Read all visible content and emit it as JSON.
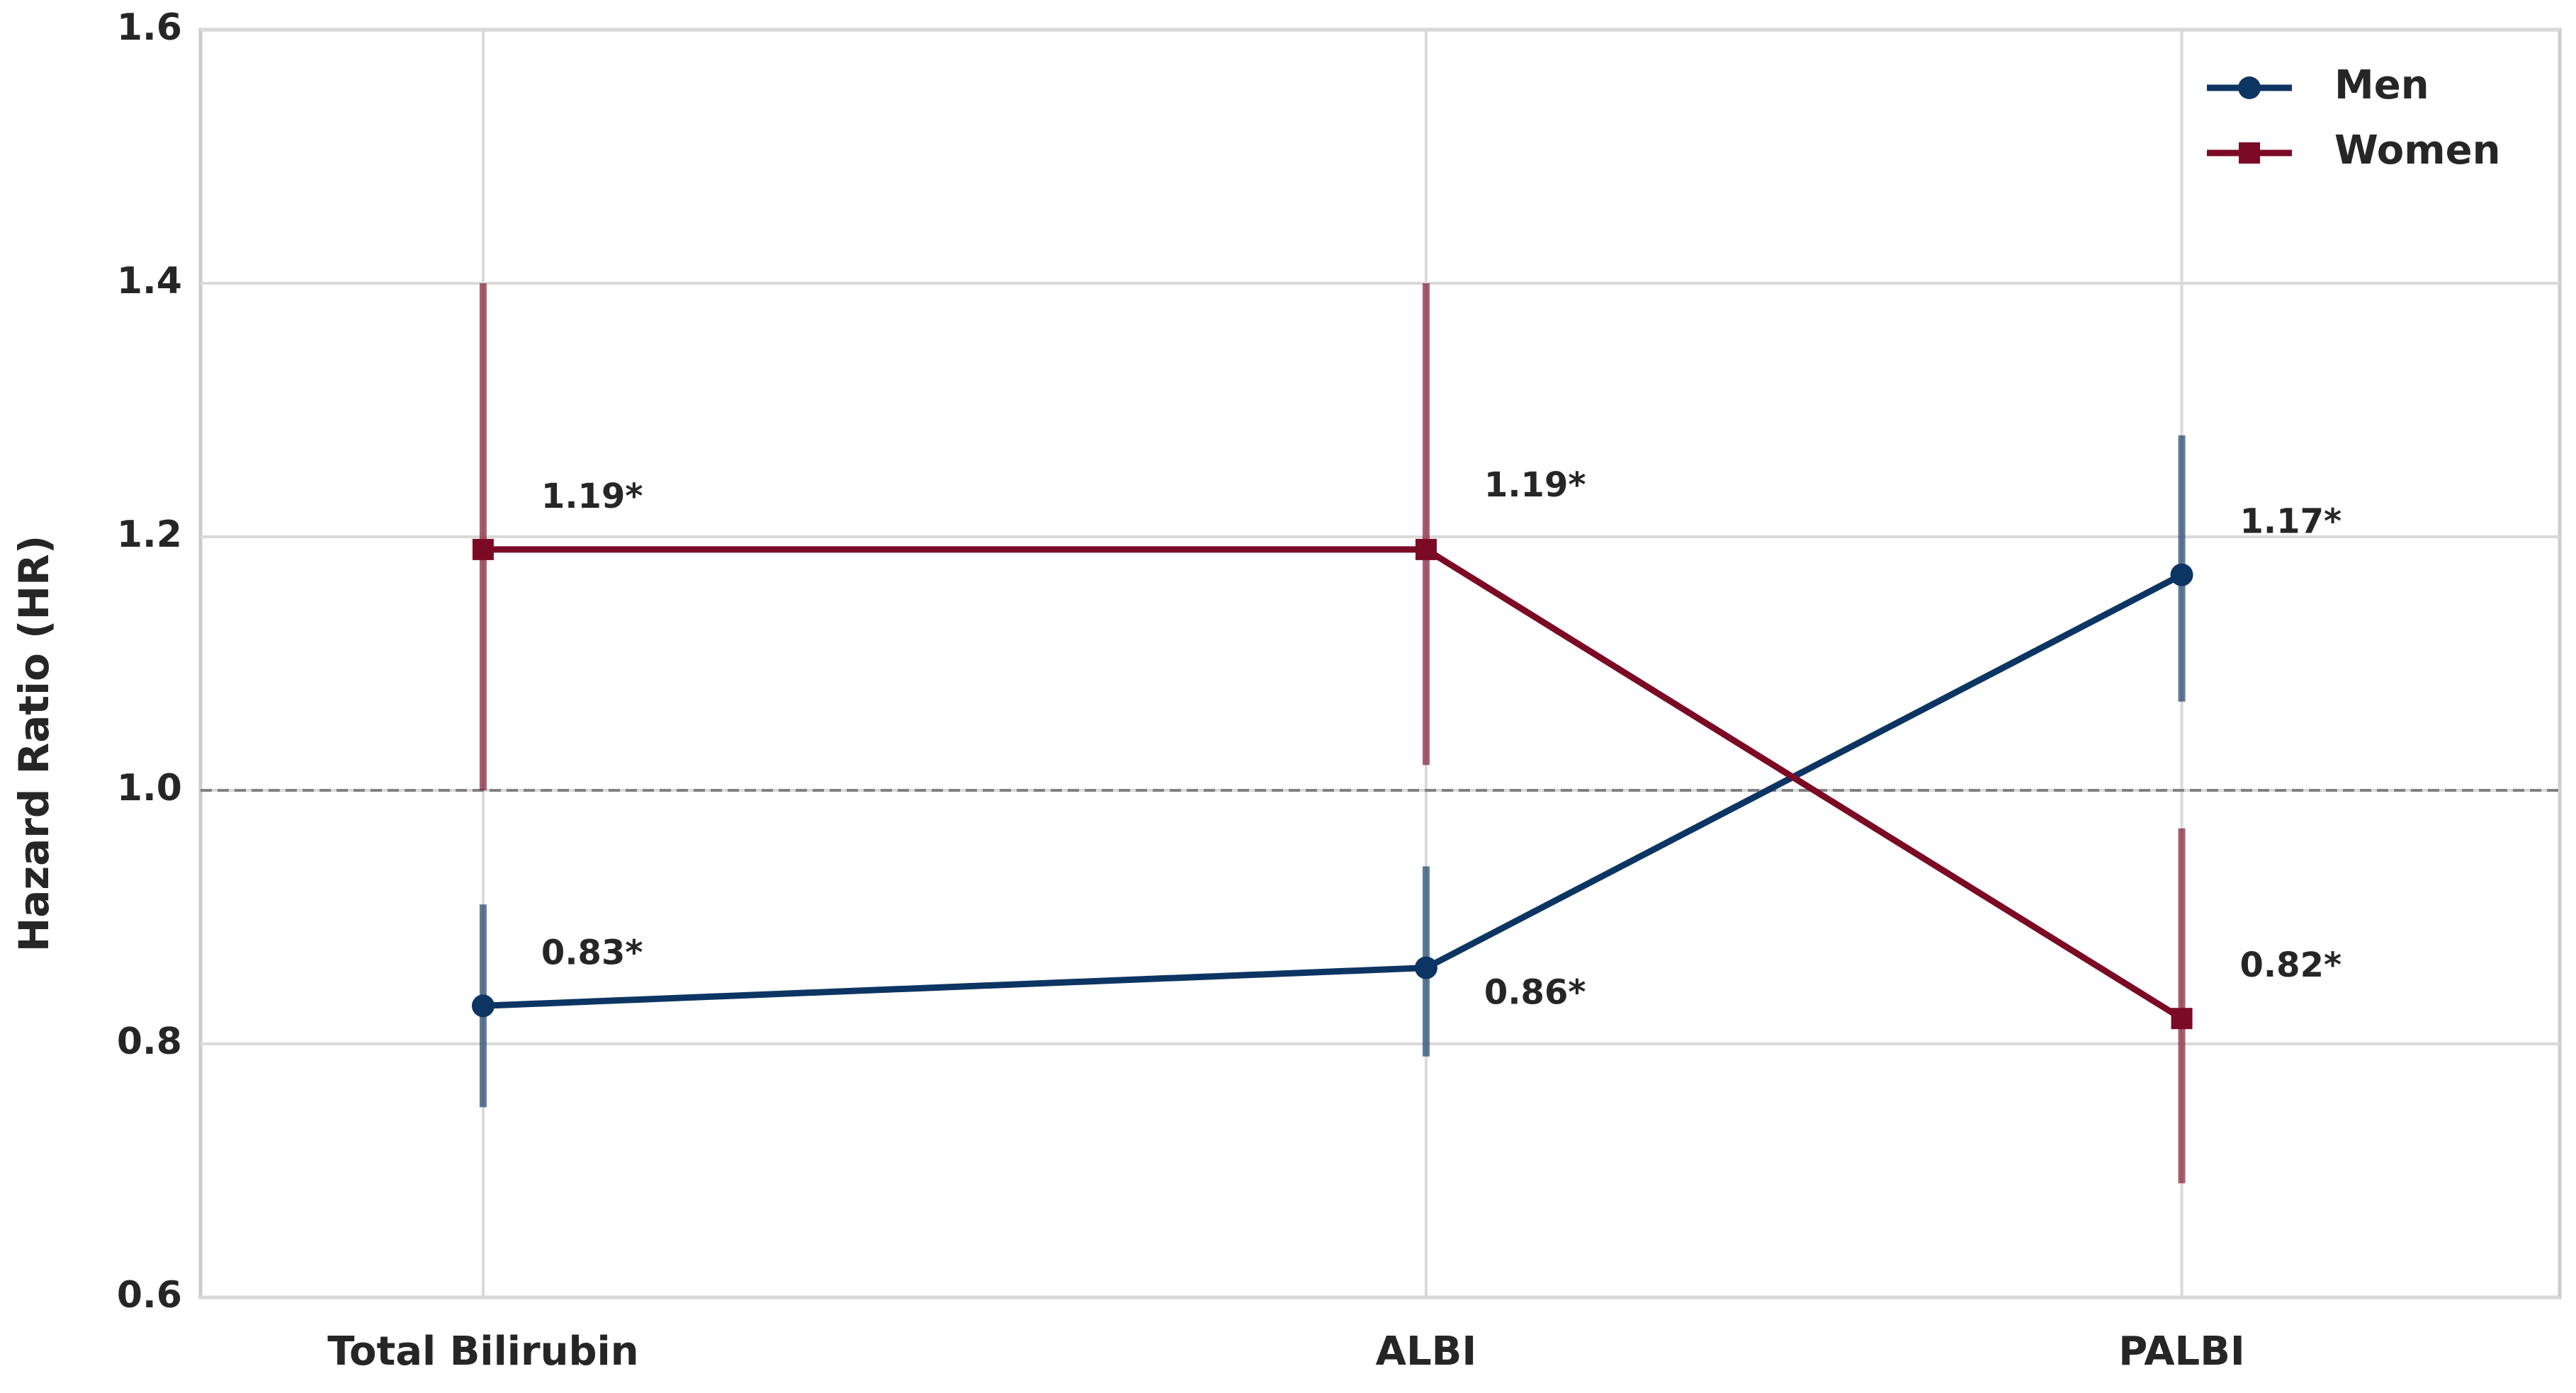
{
  "chart_data": {
    "type": "line",
    "y_label": "Hazard Ratio (HR)",
    "categories": [
      "Total Bilirubin",
      "ALBI",
      "PALBI"
    ],
    "series": [
      {
        "name": "Men",
        "color": "#0d3563",
        "marker": "circle",
        "values": [
          0.83,
          0.86,
          1.17
        ],
        "ci_low": [
          0.75,
          0.79,
          1.07
        ],
        "ci_high": [
          0.91,
          0.94,
          1.28
        ],
        "value_labels": [
          "0.83*",
          "0.86*",
          "1.17*"
        ]
      },
      {
        "name": "Women",
        "color": "#7b0a25",
        "marker": "square",
        "values": [
          1.19,
          1.19,
          0.82
        ],
        "ci_low": [
          1.0,
          1.02,
          0.69
        ],
        "ci_high": [
          1.4,
          1.4,
          0.97
        ],
        "value_labels": [
          "1.19*",
          "1.19*",
          "0.82*"
        ]
      }
    ],
    "reference_line": 1,
    "ylim": [
      0.6,
      1.6
    ],
    "yticks": [
      0.6,
      0.8,
      {
        "value": 1,
        "label": "1.0"
      },
      1.2,
      1.4,
      1.6
    ],
    "grid": true,
    "legend": "upper right"
  }
}
